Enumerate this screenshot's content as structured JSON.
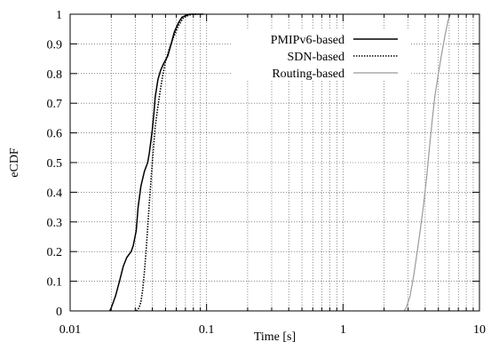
{
  "chart_data": {
    "type": "line",
    "title": "",
    "xlabel": "Time [s]",
    "ylabel": "eCDF",
    "xscale": "log",
    "xlim": [
      0.01,
      10
    ],
    "ylim": [
      0,
      1
    ],
    "x_ticks": [
      0.01,
      0.1,
      1,
      10
    ],
    "x_tick_labels": [
      "0.01",
      "0.1",
      "1",
      "10"
    ],
    "y_ticks": [
      0,
      0.1,
      0.2,
      0.3,
      0.4,
      0.5,
      0.6,
      0.7,
      0.8,
      0.9,
      1
    ],
    "y_tick_labels": [
      "0",
      "0.1",
      "0.2",
      "0.3",
      "0.4",
      "0.5",
      "0.6",
      "0.7",
      "0.8",
      "0.9",
      "1"
    ],
    "grid": true,
    "legend_position": "top-right",
    "series": [
      {
        "name": "PMIPv6-based",
        "style": "solid",
        "color": "#000000",
        "points": [
          [
            0.0195,
            0
          ],
          [
            0.02,
            0.01
          ],
          [
            0.0215,
            0.05
          ],
          [
            0.023,
            0.1
          ],
          [
            0.0245,
            0.15
          ],
          [
            0.026,
            0.18
          ],
          [
            0.028,
            0.2
          ],
          [
            0.029,
            0.22
          ],
          [
            0.0305,
            0.27
          ],
          [
            0.0315,
            0.35
          ],
          [
            0.033,
            0.42
          ],
          [
            0.035,
            0.47
          ],
          [
            0.037,
            0.5
          ],
          [
            0.038,
            0.53
          ],
          [
            0.039,
            0.57
          ],
          [
            0.04,
            0.61
          ],
          [
            0.041,
            0.66
          ],
          [
            0.042,
            0.72
          ],
          [
            0.044,
            0.78
          ],
          [
            0.046,
            0.81
          ],
          [
            0.048,
            0.83
          ],
          [
            0.052,
            0.86
          ],
          [
            0.055,
            0.9
          ],
          [
            0.058,
            0.94
          ],
          [
            0.062,
            0.97
          ],
          [
            0.066,
            0.99
          ],
          [
            0.075,
            1.0
          ],
          [
            0.095,
            1.0
          ]
        ]
      },
      {
        "name": "SDN-based",
        "style": "dotted",
        "color": "#000000",
        "points": [
          [
            0.0305,
            0
          ],
          [
            0.032,
            0.01
          ],
          [
            0.033,
            0.03
          ],
          [
            0.034,
            0.07
          ],
          [
            0.035,
            0.13
          ],
          [
            0.036,
            0.2
          ],
          [
            0.037,
            0.28
          ],
          [
            0.038,
            0.36
          ],
          [
            0.039,
            0.43
          ],
          [
            0.04,
            0.5
          ],
          [
            0.041,
            0.56
          ],
          [
            0.042,
            0.62
          ],
          [
            0.044,
            0.69
          ],
          [
            0.046,
            0.75
          ],
          [
            0.048,
            0.8
          ],
          [
            0.05,
            0.84
          ],
          [
            0.053,
            0.88
          ],
          [
            0.057,
            0.92
          ],
          [
            0.062,
            0.96
          ],
          [
            0.068,
            0.99
          ],
          [
            0.078,
            1.0
          ],
          [
            0.085,
            1.0
          ]
        ]
      },
      {
        "name": "Routing-based",
        "style": "solid",
        "color": "#9a9a9a",
        "points": [
          [
            2.8,
            0
          ],
          [
            2.9,
            0.01
          ],
          [
            3.1,
            0.05
          ],
          [
            3.3,
            0.12
          ],
          [
            3.5,
            0.2
          ],
          [
            3.7,
            0.28
          ],
          [
            3.9,
            0.36
          ],
          [
            4.1,
            0.45
          ],
          [
            4.3,
            0.55
          ],
          [
            4.5,
            0.64
          ],
          [
            4.7,
            0.72
          ],
          [
            5.0,
            0.8
          ],
          [
            5.3,
            0.87
          ],
          [
            5.6,
            0.93
          ],
          [
            5.9,
            0.98
          ],
          [
            6.1,
            1.0
          ]
        ]
      }
    ]
  }
}
